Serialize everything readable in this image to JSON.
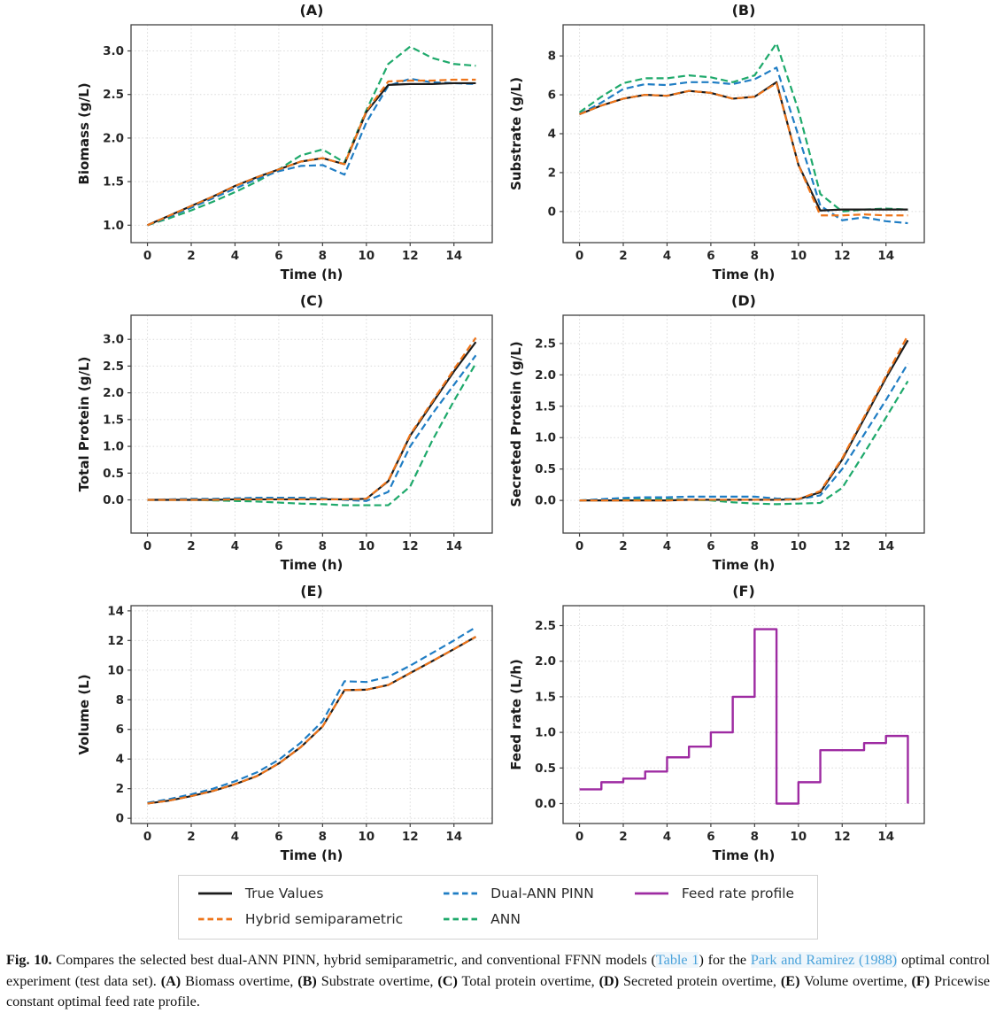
{
  "colors": {
    "true_values": "#1b1b1b",
    "hybrid": "#ee7419",
    "dual_ann_pinn": "#1f7dc4",
    "ann": "#1ea96b",
    "feed_rate": "#9e2ba2",
    "spine": "#424242",
    "grid": "#dadada",
    "tick_text": "#262626",
    "link": "#4ba3db"
  },
  "chart_data": [
    {
      "panel": "A",
      "type": "line",
      "title": "(A)",
      "xlabel": "Time (h)",
      "ylabel": "Biomass (g/L)",
      "xlim": [
        -0.75,
        15.75
      ],
      "ylim": [
        0.8,
        3.3
      ],
      "xticks": [
        0,
        2,
        4,
        6,
        8,
        10,
        12,
        14
      ],
      "xtick_labels": [
        "0",
        "2",
        "4",
        "6",
        "8",
        "10",
        "12",
        "14"
      ],
      "yticks": [
        1.0,
        1.5,
        2.0,
        2.5,
        3.0
      ],
      "ytick_labels": [
        "1.0",
        "1.5",
        "2.0",
        "2.5",
        "3.0"
      ],
      "x": [
        0,
        1,
        2,
        3,
        4,
        5,
        6,
        7,
        8,
        9,
        10,
        11,
        12,
        13,
        14,
        15
      ],
      "series": [
        {
          "name": "ANN",
          "color_key": "ann",
          "dash": "dashed",
          "y": [
            1.0,
            1.08,
            1.17,
            1.27,
            1.38,
            1.5,
            1.64,
            1.8,
            1.87,
            1.72,
            2.32,
            2.85,
            3.05,
            2.92,
            2.85,
            2.83
          ]
        },
        {
          "name": "Dual-ANN PINN",
          "color_key": "dual_ann_pinn",
          "dash": "dashed",
          "y": [
            1.0,
            1.1,
            1.2,
            1.31,
            1.42,
            1.53,
            1.62,
            1.68,
            1.69,
            1.58,
            2.18,
            2.6,
            2.68,
            2.64,
            2.63,
            2.62
          ]
        },
        {
          "name": "True Values",
          "color_key": "true_values",
          "dash": "solid",
          "y": [
            1.0,
            1.11,
            1.22,
            1.33,
            1.45,
            1.55,
            1.64,
            1.73,
            1.77,
            1.7,
            2.3,
            2.61,
            2.62,
            2.62,
            2.63,
            2.63
          ]
        },
        {
          "name": "Hybrid semiparametric",
          "color_key": "hybrid",
          "dash": "dashed",
          "y": [
            1.0,
            1.11,
            1.22,
            1.33,
            1.45,
            1.55,
            1.64,
            1.73,
            1.77,
            1.7,
            2.31,
            2.65,
            2.66,
            2.66,
            2.67,
            2.67
          ]
        }
      ]
    },
    {
      "panel": "B",
      "type": "line",
      "title": "(B)",
      "xlabel": "Time (h)",
      "ylabel": "Substrate (g/L)",
      "xlim": [
        -0.75,
        15.75
      ],
      "ylim": [
        -1.6,
        9.6
      ],
      "xticks": [
        0,
        2,
        4,
        6,
        8,
        10,
        12,
        14
      ],
      "xtick_labels": [
        "0",
        "2",
        "4",
        "6",
        "8",
        "10",
        "12",
        "14"
      ],
      "yticks": [
        0,
        2,
        4,
        6,
        8
      ],
      "ytick_labels": [
        "0",
        "2",
        "4",
        "6",
        "8"
      ],
      "x": [
        0,
        1,
        2,
        3,
        4,
        5,
        6,
        7,
        8,
        9,
        10,
        11,
        12,
        13,
        14,
        15
      ],
      "series": [
        {
          "name": "ANN",
          "color_key": "ann",
          "dash": "dashed",
          "y": [
            5.1,
            5.9,
            6.6,
            6.85,
            6.85,
            7.0,
            6.9,
            6.65,
            7.0,
            8.65,
            5.2,
            0.9,
            0.0,
            0.1,
            0.15,
            0.1
          ]
        },
        {
          "name": "Dual-ANN PINN",
          "color_key": "dual_ann_pinn",
          "dash": "dashed",
          "y": [
            5.0,
            5.6,
            6.3,
            6.55,
            6.5,
            6.65,
            6.65,
            6.55,
            6.8,
            7.4,
            3.9,
            0.3,
            -0.45,
            -0.3,
            -0.5,
            -0.6
          ]
        },
        {
          "name": "True Values",
          "color_key": "true_values",
          "dash": "solid",
          "y": [
            5.0,
            5.45,
            5.8,
            6.0,
            5.95,
            6.2,
            6.1,
            5.8,
            5.9,
            6.65,
            2.4,
            0.05,
            0.1,
            0.1,
            0.1,
            0.1
          ]
        },
        {
          "name": "Hybrid semiparametric",
          "color_key": "hybrid",
          "dash": "dashed",
          "y": [
            5.0,
            5.45,
            5.8,
            6.0,
            5.95,
            6.2,
            6.1,
            5.8,
            5.9,
            6.6,
            2.4,
            -0.2,
            -0.2,
            -0.15,
            -0.2,
            -0.2
          ]
        }
      ]
    },
    {
      "panel": "C",
      "type": "line",
      "title": "(C)",
      "xlabel": "Time (h)",
      "ylabel": "Total Protein (g/L)",
      "xlim": [
        -0.75,
        15.75
      ],
      "ylim": [
        -0.62,
        3.45
      ],
      "xticks": [
        0,
        2,
        4,
        6,
        8,
        10,
        12,
        14
      ],
      "xtick_labels": [
        "0",
        "2",
        "4",
        "6",
        "8",
        "10",
        "12",
        "14"
      ],
      "yticks": [
        0.0,
        0.5,
        1.0,
        1.5,
        2.0,
        2.5,
        3.0
      ],
      "ytick_labels": [
        "0.0",
        "0.5",
        "1.0",
        "1.5",
        "2.0",
        "2.5",
        "3.0"
      ],
      "x": [
        0,
        1,
        2,
        3,
        4,
        5,
        6,
        7,
        8,
        9,
        10,
        11,
        12,
        13,
        14,
        15
      ],
      "series": [
        {
          "name": "ANN",
          "color_key": "ann",
          "dash": "dashed",
          "y": [
            0.0,
            0.0,
            0.0,
            -0.01,
            -0.02,
            -0.03,
            -0.05,
            -0.07,
            -0.08,
            -0.1,
            -0.1,
            -0.1,
            0.25,
            1.1,
            1.85,
            2.55
          ]
        },
        {
          "name": "Dual-ANN PINN",
          "color_key": "dual_ann_pinn",
          "dash": "dashed",
          "y": [
            0.0,
            0.01,
            0.02,
            0.02,
            0.03,
            0.04,
            0.04,
            0.04,
            0.03,
            0.0,
            -0.02,
            0.15,
            1.0,
            1.6,
            2.15,
            2.7
          ]
        },
        {
          "name": "True Values",
          "color_key": "true_values",
          "dash": "solid",
          "y": [
            0.0,
            0.0,
            0.0,
            0.0,
            0.01,
            0.01,
            0.01,
            0.01,
            0.01,
            0.01,
            0.02,
            0.35,
            1.2,
            1.8,
            2.4,
            2.95
          ]
        },
        {
          "name": "Hybrid semiparametric",
          "color_key": "hybrid",
          "dash": "dashed",
          "y": [
            0.0,
            0.0,
            0.0,
            0.0,
            0.01,
            0.01,
            0.01,
            0.01,
            0.01,
            0.01,
            0.02,
            0.36,
            1.22,
            1.83,
            2.44,
            3.03
          ]
        }
      ]
    },
    {
      "panel": "D",
      "type": "line",
      "title": "(D)",
      "xlabel": "Time (h)",
      "ylabel": "Secreted Protein (g/L)",
      "xlim": [
        -0.75,
        15.75
      ],
      "ylim": [
        -0.52,
        2.95
      ],
      "xticks": [
        0,
        2,
        4,
        6,
        8,
        10,
        12,
        14
      ],
      "xtick_labels": [
        "0",
        "2",
        "4",
        "6",
        "8",
        "10",
        "12",
        "14"
      ],
      "yticks": [
        0.0,
        0.5,
        1.0,
        1.5,
        2.0,
        2.5
      ],
      "ytick_labels": [
        "0.0",
        "0.5",
        "1.0",
        "1.5",
        "2.0",
        "2.5"
      ],
      "x": [
        0,
        1,
        2,
        3,
        4,
        5,
        6,
        7,
        8,
        9,
        10,
        11,
        12,
        13,
        14,
        15
      ],
      "series": [
        {
          "name": "ANN",
          "color_key": "ann",
          "dash": "dashed",
          "y": [
            0.0,
            0.01,
            0.02,
            0.02,
            0.02,
            0.01,
            0.0,
            -0.03,
            -0.05,
            -0.06,
            -0.05,
            -0.04,
            0.2,
            0.75,
            1.32,
            1.9
          ]
        },
        {
          "name": "Dual-ANN PINN",
          "color_key": "dual_ann_pinn",
          "dash": "dashed",
          "y": [
            0.0,
            0.02,
            0.04,
            0.05,
            0.05,
            0.06,
            0.06,
            0.06,
            0.06,
            0.03,
            0.02,
            0.08,
            0.5,
            1.05,
            1.6,
            2.18
          ]
        },
        {
          "name": "True Values",
          "color_key": "true_values",
          "dash": "solid",
          "y": [
            0.0,
            0.0,
            0.0,
            0.0,
            0.0,
            0.01,
            0.01,
            0.01,
            0.01,
            0.01,
            0.02,
            0.13,
            0.65,
            1.3,
            1.95,
            2.55
          ]
        },
        {
          "name": "Hybrid semiparametric",
          "color_key": "hybrid",
          "dash": "dashed",
          "y": [
            0.0,
            0.0,
            0.0,
            0.0,
            0.0,
            0.01,
            0.01,
            0.01,
            0.01,
            0.01,
            0.02,
            0.15,
            0.67,
            1.33,
            1.98,
            2.63
          ]
        }
      ]
    },
    {
      "panel": "E",
      "type": "line",
      "title": "(E)",
      "xlabel": "Time (h)",
      "ylabel": "Volume (L)",
      "xlim": [
        -0.75,
        15.75
      ],
      "ylim": [
        -0.35,
        14.35
      ],
      "xticks": [
        0,
        2,
        4,
        6,
        8,
        10,
        12,
        14
      ],
      "xtick_labels": [
        "0",
        "2",
        "4",
        "6",
        "8",
        "10",
        "12",
        "14"
      ],
      "yticks": [
        0,
        2,
        4,
        6,
        8,
        10,
        12,
        14
      ],
      "ytick_labels": [
        "0",
        "2",
        "4",
        "6",
        "8",
        "10",
        "12",
        "14"
      ],
      "x": [
        0,
        1,
        2,
        3,
        4,
        5,
        6,
        7,
        8,
        9,
        10,
        11,
        12,
        13,
        14,
        15
      ],
      "series": [
        {
          "name": "Dual-ANN PINN",
          "color_key": "dual_ann_pinn",
          "dash": "dashed",
          "y": [
            1.05,
            1.3,
            1.62,
            2.0,
            2.5,
            3.1,
            3.95,
            5.1,
            6.55,
            9.25,
            9.2,
            9.55,
            10.3,
            11.15,
            12.0,
            12.9
          ]
        },
        {
          "name": "True Values",
          "color_key": "true_values",
          "dash": "solid",
          "y": [
            1.0,
            1.2,
            1.5,
            1.85,
            2.3,
            2.85,
            3.7,
            4.8,
            6.2,
            8.65,
            8.68,
            9.0,
            9.8,
            10.6,
            11.42,
            12.25
          ]
        },
        {
          "name": "Hybrid semiparametric",
          "color_key": "hybrid",
          "dash": "dashed",
          "y": [
            1.0,
            1.2,
            1.5,
            1.85,
            2.3,
            2.85,
            3.7,
            4.8,
            6.2,
            8.65,
            8.68,
            9.0,
            9.8,
            10.6,
            11.42,
            12.25
          ]
        }
      ]
    },
    {
      "panel": "F",
      "type": "step",
      "title": "(F)",
      "xlabel": "Time (h)",
      "ylabel": "Feed rate (L/h)",
      "xlim": [
        -0.75,
        15.75
      ],
      "ylim": [
        -0.28,
        2.78
      ],
      "xticks": [
        0,
        2,
        4,
        6,
        8,
        10,
        12,
        14
      ],
      "xtick_labels": [
        "0",
        "2",
        "4",
        "6",
        "8",
        "10",
        "12",
        "14"
      ],
      "yticks": [
        0.0,
        0.5,
        1.0,
        1.5,
        2.0,
        2.5
      ],
      "ytick_labels": [
        "0.0",
        "0.5",
        "1.0",
        "1.5",
        "2.0",
        "2.5"
      ],
      "series": [
        {
          "name": "Feed rate profile",
          "color_key": "feed_rate",
          "dash": "solid",
          "edges": [
            0,
            1,
            2,
            3,
            4,
            5,
            6,
            7,
            8,
            9,
            10,
            11,
            13,
            14,
            15
          ],
          "values": [
            0.2,
            0.3,
            0.35,
            0.45,
            0.65,
            0.8,
            1.0,
            1.5,
            2.45,
            0.0,
            0.3,
            0.75,
            0.85,
            0.95
          ],
          "end_value": 0.0
        }
      ]
    }
  ],
  "legend": {
    "items": [
      {
        "label": "True Values",
        "color_key": "true_values",
        "dash": "solid"
      },
      {
        "label": "Hybrid semiparametric",
        "color_key": "hybrid",
        "dash": "dashed"
      },
      {
        "label": "Dual-ANN PINN",
        "color_key": "dual_ann_pinn",
        "dash": "dashed"
      },
      {
        "label": "ANN",
        "color_key": "ann",
        "dash": "dashed"
      },
      {
        "label": "Feed rate profile",
        "color_key": "feed_rate",
        "dash": "solid"
      }
    ]
  },
  "caption": {
    "segments": [
      {
        "text": "Fig. 10.",
        "style": "bold"
      },
      {
        "text": " Compares the selected best dual-ANN PINN, hybrid semiparametric, and conventional FFNN models (",
        "style": "normal"
      },
      {
        "text": "Table 1",
        "style": "link",
        "name": "table-1-link"
      },
      {
        "text": ") for the ",
        "style": "normal"
      },
      {
        "text": "Park and Ramirez (1988)",
        "style": "link",
        "name": "park-ramirez-link"
      },
      {
        "text": " optimal control experiment (test data set). ",
        "style": "normal"
      },
      {
        "text": "(A)",
        "style": "bold"
      },
      {
        "text": " Biomass overtime, ",
        "style": "normal"
      },
      {
        "text": "(B)",
        "style": "bold"
      },
      {
        "text": " Substrate overtime, ",
        "style": "normal"
      },
      {
        "text": "(C)",
        "style": "bold"
      },
      {
        "text": " Total protein overtime, ",
        "style": "normal"
      },
      {
        "text": "(D)",
        "style": "bold"
      },
      {
        "text": " Secreted protein overtime, ",
        "style": "normal"
      },
      {
        "text": "(E)",
        "style": "bold"
      },
      {
        "text": " Volume overtime, ",
        "style": "normal"
      },
      {
        "text": "(F)",
        "style": "bold"
      },
      {
        "text": " Pricewise constant optimal feed rate profile.",
        "style": "normal"
      }
    ]
  }
}
